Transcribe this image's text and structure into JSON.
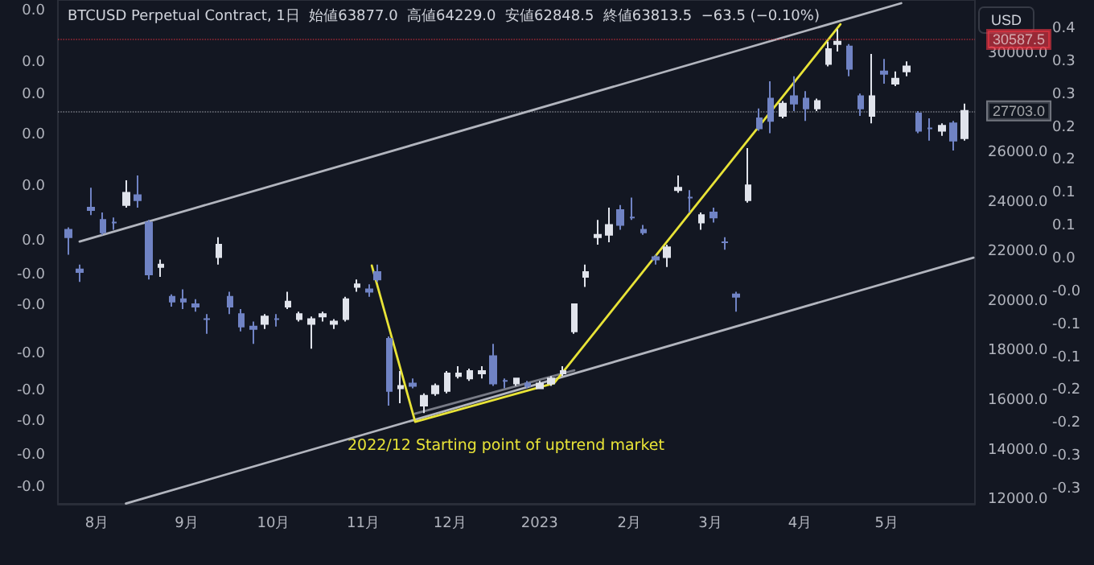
{
  "chart_data": {
    "type": "candlestick",
    "subtitle": "BTCUSD Perpetual Contract, 1日  始値63877.0  高値64229.0  安値62848.5  終値63813.5  −63.5 (−0.10%)",
    "ylabel": "USD",
    "annotations": [
      "2022/12 Starting point of uptrend market"
    ],
    "x": [
      "2022-07-22",
      "2022-07-26",
      "2022-07-30",
      "2022-08-03",
      "2022-08-07",
      "2022-08-11",
      "2022-08-15",
      "2022-08-19",
      "2022-08-23",
      "2022-08-27",
      "2022-08-31",
      "2022-09-04",
      "2022-09-08",
      "2022-09-12",
      "2022-09-16",
      "2022-09-20",
      "2022-09-24",
      "2022-09-28",
      "2022-10-02",
      "2022-10-06",
      "2022-10-10",
      "2022-10-14",
      "2022-10-18",
      "2022-10-22",
      "2022-10-26",
      "2022-10-30",
      "2022-11-03",
      "2022-11-06",
      "2022-11-10",
      "2022-11-14",
      "2022-11-18",
      "2022-11-22",
      "2022-11-26",
      "2022-11-30",
      "2022-12-04",
      "2022-12-08",
      "2022-12-12",
      "2022-12-16",
      "2022-12-20",
      "2022-12-24",
      "2022-12-28",
      "2023-01-01",
      "2023-01-05",
      "2023-01-09",
      "2023-01-13",
      "2023-01-17",
      "2023-01-21",
      "2023-01-25",
      "2023-01-29",
      "2023-02-02",
      "2023-02-06",
      "2023-02-10",
      "2023-02-14",
      "2023-02-18",
      "2023-02-22",
      "2023-02-26",
      "2023-03-02",
      "2023-03-06",
      "2023-03-10",
      "2023-03-14",
      "2023-03-18",
      "2023-03-22",
      "2023-03-26",
      "2023-03-30",
      "2023-04-03",
      "2023-04-07",
      "2023-04-11",
      "2023-04-14",
      "2023-04-18",
      "2023-04-22",
      "2023-04-26",
      "2023-04-30",
      "2023-05-04",
      "2023-05-08",
      "2023-05-12",
      "2023-05-16",
      "2023-05-20",
      "2023-05-24",
      "2023-05-28"
    ],
    "ohlc": [
      [
        22900,
        23000,
        21900,
        22600
      ],
      [
        21300,
        21500,
        20800,
        21200
      ],
      [
        23800,
        24600,
        23500,
        23700
      ],
      [
        23300,
        23600,
        22700,
        22800
      ],
      [
        23200,
        23400,
        22900,
        23200
      ],
      [
        23900,
        24900,
        23800,
        24400
      ],
      [
        24300,
        25100,
        23800,
        24100
      ],
      [
        23200,
        23300,
        20900,
        21100
      ],
      [
        21400,
        21700,
        21000,
        21500
      ],
      [
        20200,
        20300,
        19800,
        20000
      ],
      [
        20100,
        20500,
        19700,
        20000
      ],
      [
        19900,
        20100,
        19600,
        19800
      ],
      [
        19300,
        19500,
        18700,
        19300
      ],
      [
        21800,
        22600,
        21500,
        22300
      ],
      [
        20200,
        20400,
        19500,
        19800
      ],
      [
        19500,
        19700,
        18800,
        19000
      ],
      [
        19000,
        19200,
        18300,
        18900
      ],
      [
        19100,
        19500,
        18900,
        19400
      ],
      [
        19300,
        19500,
        19000,
        19300
      ],
      [
        19800,
        20400,
        19700,
        20000
      ],
      [
        19300,
        19600,
        19200,
        19500
      ],
      [
        19100,
        19400,
        18100,
        19300
      ],
      [
        19400,
        19600,
        19200,
        19500
      ],
      [
        19100,
        19300,
        18900,
        19200
      ],
      [
        19300,
        20200,
        19200,
        20100
      ],
      [
        20600,
        20900,
        20400,
        20700
      ],
      [
        20500,
        20700,
        20200,
        20400
      ],
      [
        21200,
        21500,
        20800,
        20900
      ],
      [
        18500,
        18600,
        15800,
        16400
      ],
      [
        16500,
        17200,
        15900,
        16600
      ],
      [
        16700,
        16900,
        16500,
        16600
      ],
      [
        15800,
        16300,
        15500,
        16200
      ],
      [
        16300,
        16700,
        16200,
        16600
      ],
      [
        16400,
        17200,
        16300,
        17100
      ],
      [
        17000,
        17400,
        16900,
        17100
      ],
      [
        16900,
        17300,
        16800,
        17200
      ],
      [
        17100,
        17400,
        16900,
        17200
      ],
      [
        17800,
        18300,
        16600,
        16700
      ],
      [
        16800,
        16900,
        16500,
        16800
      ],
      [
        16700,
        16900,
        16600,
        16900
      ],
      [
        16700,
        16800,
        16500,
        16600
      ],
      [
        16500,
        16800,
        16500,
        16700
      ],
      [
        16700,
        17000,
        16600,
        16900
      ],
      [
        17100,
        17400,
        17000,
        17200
      ],
      [
        18800,
        19900,
        18700,
        19900
      ],
      [
        21000,
        21500,
        20600,
        21200
      ],
      [
        22600,
        23300,
        22300,
        22700
      ],
      [
        22700,
        23800,
        22400,
        23100
      ],
      [
        23700,
        23900,
        22900,
        23100
      ],
      [
        23400,
        24200,
        23300,
        23400
      ],
      [
        22900,
        23100,
        22700,
        22800
      ],
      [
        21800,
        21900,
        21500,
        21700
      ],
      [
        21800,
        22300,
        21400,
        22200
      ],
      [
        24500,
        25100,
        24400,
        24600
      ],
      [
        24200,
        24500,
        23600,
        24200
      ],
      [
        23200,
        23600,
        22900,
        23500
      ],
      [
        23600,
        23800,
        23200,
        23400
      ],
      [
        22400,
        22600,
        22100,
        22400
      ],
      [
        20300,
        20400,
        19600,
        20200
      ],
      [
        24100,
        26200,
        24000,
        24700
      ],
      [
        27400,
        27800,
        26900,
        27000
      ],
      [
        28200,
        28900,
        26800,
        27300
      ],
      [
        27500,
        28100,
        27400,
        28000
      ],
      [
        28300,
        29100,
        27700,
        28000
      ],
      [
        28200,
        28500,
        27300,
        27800
      ],
      [
        27800,
        28200,
        27700,
        28100
      ],
      [
        29600,
        30500,
        29500,
        30200
      ],
      [
        30400,
        31000,
        30100,
        30500
      ],
      [
        30300,
        30400,
        29100,
        29400
      ],
      [
        28300,
        28400,
        27500,
        27800
      ],
      [
        27500,
        30000,
        27200,
        28300
      ],
      [
        29300,
        29800,
        28800,
        29200
      ],
      [
        28800,
        29300,
        28700,
        29000
      ],
      [
        29300,
        29700,
        29100,
        29500
      ],
      [
        27600,
        27700,
        26800,
        26900
      ],
      [
        27000,
        27400,
        26500,
        27000
      ],
      [
        26900,
        27200,
        26700,
        27100
      ],
      [
        27200,
        27300,
        26100,
        26500
      ],
      [
        26600,
        28000,
        26500,
        27703
      ]
    ],
    "series": [
      {
        "type": "line",
        "color": "#b2b5be",
        "x": [
          "2022-07-26",
          "2023-05-06"
        ],
        "values": [
          22430,
          32050
        ]
      },
      {
        "type": "line",
        "color": "#b2b5be",
        "x": [
          "2022-08-11",
          "2023-05-31"
        ],
        "values": [
          11850,
          21780
        ]
      },
      {
        "type": "line",
        "color": "#787b86",
        "x": [
          "2022-11-19",
          "2023-01-13"
        ],
        "values": [
          15480,
          17230
        ]
      },
      {
        "type": "line",
        "color": "#e8e337",
        "x": [
          "2022-11-04",
          "2022-11-19",
          "2023-01-06",
          "2023-04-15"
        ],
        "values": [
          21460,
          15150,
          16710,
          31200
        ]
      }
    ],
    "ref_lines": [
      {
        "axis": "y",
        "value": 30587.5,
        "label": "30587.5",
        "color": "#f23645",
        "line_style": "dotted"
      },
      {
        "axis": "y",
        "value": 27703.0,
        "label": "27703.0",
        "color": "#b2b5be",
        "line_style": "dotted"
      }
    ],
    "line_style": "solid",
    "xlim": [
      "2022-07-19",
      "2023-05-31"
    ],
    "xticks": [
      {
        "value": "2022-08-01",
        "label": "8月"
      },
      {
        "value": "2022-09-01",
        "label": "9月"
      },
      {
        "value": "2022-10-01",
        "label": "10月"
      },
      {
        "value": "2022-11-01",
        "label": "11月"
      },
      {
        "value": "2022-12-01",
        "label": "12月"
      },
      {
        "value": "2023-01-01",
        "label": "2023"
      },
      {
        "value": "2023-02-01",
        "label": "2月"
      },
      {
        "value": "2023-03-01",
        "label": "3月"
      },
      {
        "value": "2023-04-01",
        "label": "4月"
      },
      {
        "value": "2023-05-01",
        "label": "5月"
      }
    ],
    "ylim": [
      11840,
      32180
    ],
    "yticks": [
      {
        "value": 12000,
        "label": "12000.0"
      },
      {
        "value": 14000,
        "label": "14000.0"
      },
      {
        "value": 16000,
        "label": "16000.0"
      },
      {
        "value": 18000,
        "label": "18000.0"
      },
      {
        "value": 20000,
        "label": "20000.0"
      },
      {
        "value": 22000,
        "label": "22000.0"
      },
      {
        "value": 24000,
        "label": "24000.0"
      },
      {
        "value": 26000,
        "label": "26000.0"
      },
      {
        "value": 30000,
        "label": "30000.0"
      }
    ],
    "y2lim": [
      -0.322,
      0.444
    ],
    "y2ticks": [
      {
        "value": 0.4,
        "label": "0.4"
      },
      {
        "value": 0.35,
        "label": "0.3"
      },
      {
        "value": 0.3,
        "label": "0.3"
      },
      {
        "value": 0.25,
        "label": "0.2"
      },
      {
        "value": 0.2,
        "label": "0.2"
      },
      {
        "value": 0.15,
        "label": "0.1"
      },
      {
        "value": 0.1,
        "label": "0.1"
      },
      {
        "value": 0.05,
        "label": "0.0"
      },
      {
        "value": 0,
        "label": "-0.0"
      },
      {
        "value": -0.05,
        "label": "-0.1"
      },
      {
        "value": -0.1,
        "label": "-0.1"
      },
      {
        "value": -0.15,
        "label": "-0.2"
      },
      {
        "value": -0.2,
        "label": "-0.2"
      },
      {
        "value": -0.25,
        "label": "-0.3"
      },
      {
        "value": -0.3,
        "label": "-0.3"
      }
    ],
    "y3lim": [
      -0.0392,
      0.041
    ],
    "y3ticks": [
      {
        "value": 0.0392,
        "label": "0.0"
      },
      {
        "value": 0.031,
        "label": "0.0"
      },
      {
        "value": 0.0259,
        "label": "0.0"
      },
      {
        "value": 0.0195,
        "label": "0.0"
      },
      {
        "value": 0.0113,
        "label": "0.0"
      },
      {
        "value": 0.0026,
        "label": "0.0"
      },
      {
        "value": -0.0028,
        "label": "-0.0"
      },
      {
        "value": -0.0077,
        "label": "-0.0"
      },
      {
        "value": -0.0154,
        "label": "-0.0"
      },
      {
        "value": -0.0212,
        "label": "-0.0"
      },
      {
        "value": -0.0261,
        "label": "-0.0"
      },
      {
        "value": -0.0315,
        "label": "-0.0"
      },
      {
        "value": -0.0366,
        "label": "-0.0"
      }
    ]
  }
}
